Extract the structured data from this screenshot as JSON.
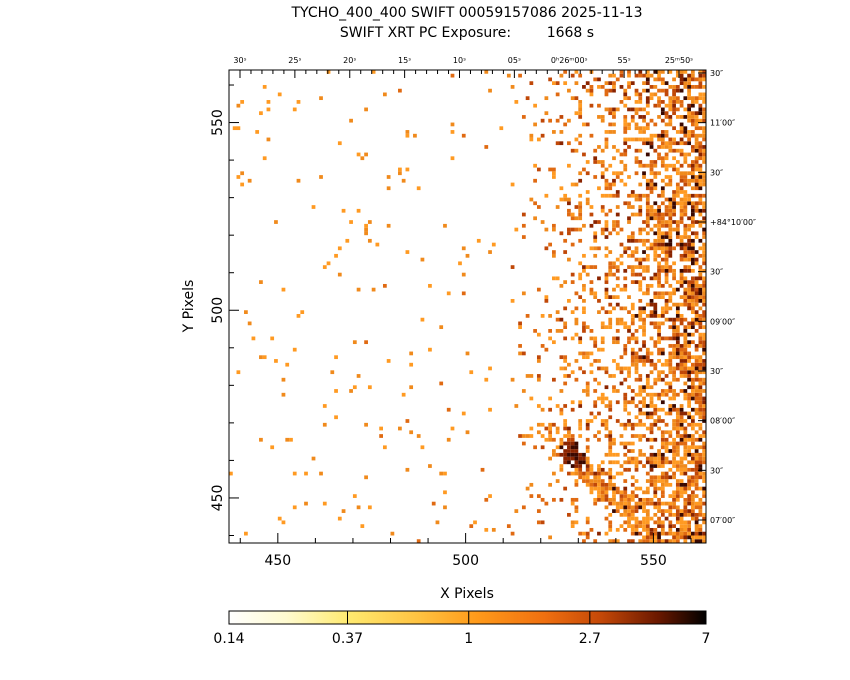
{
  "chart_data": {
    "type": "heatmap",
    "title": "TYCHO_400_400 SWIFT 00059157086 2025-11-13",
    "subtitle": "SWIFT XRT PC Exposure:        1668 s",
    "xlabel": "X Pixels",
    "ylabel": "Y Pixels",
    "xlim": [
      437,
      564
    ],
    "ylim": [
      438,
      564
    ],
    "x_ticks": [
      450,
      500,
      550
    ],
    "y_ticks": [
      450,
      500,
      550
    ],
    "ra_ticks": [
      "30ˢ",
      "25ˢ",
      "20ˢ",
      "15ˢ",
      "10ˢ",
      "05ˢ",
      "0ʰ26ᵐ00ˢ",
      "55ˢ",
      "25ᵐ50ˢ"
    ],
    "dec_ticks": [
      "30″",
      "11′00″",
      "30″",
      "+84°10′00″",
      "30″",
      "09′00″",
      "30″",
      "08′00″",
      "30″",
      "07′00″"
    ],
    "colorbar": {
      "scale": "log",
      "range": [
        0.14,
        7
      ],
      "tick_labels": [
        "0.14",
        "0.37",
        "1",
        "2.7",
        "7"
      ]
    },
    "counts_description": "Sparse single-count pixels on the left half; dense emission of 1-7 counts per pixel concentrated along the right edge, with a diagonal bright filament near X 525-545, Y 440-465.",
    "colors": {
      "low": "#ffffe0",
      "mid_low": "#ffd85a",
      "mid": "#ff8c1a",
      "high": "#c04000",
      "max": "#000000"
    }
  }
}
